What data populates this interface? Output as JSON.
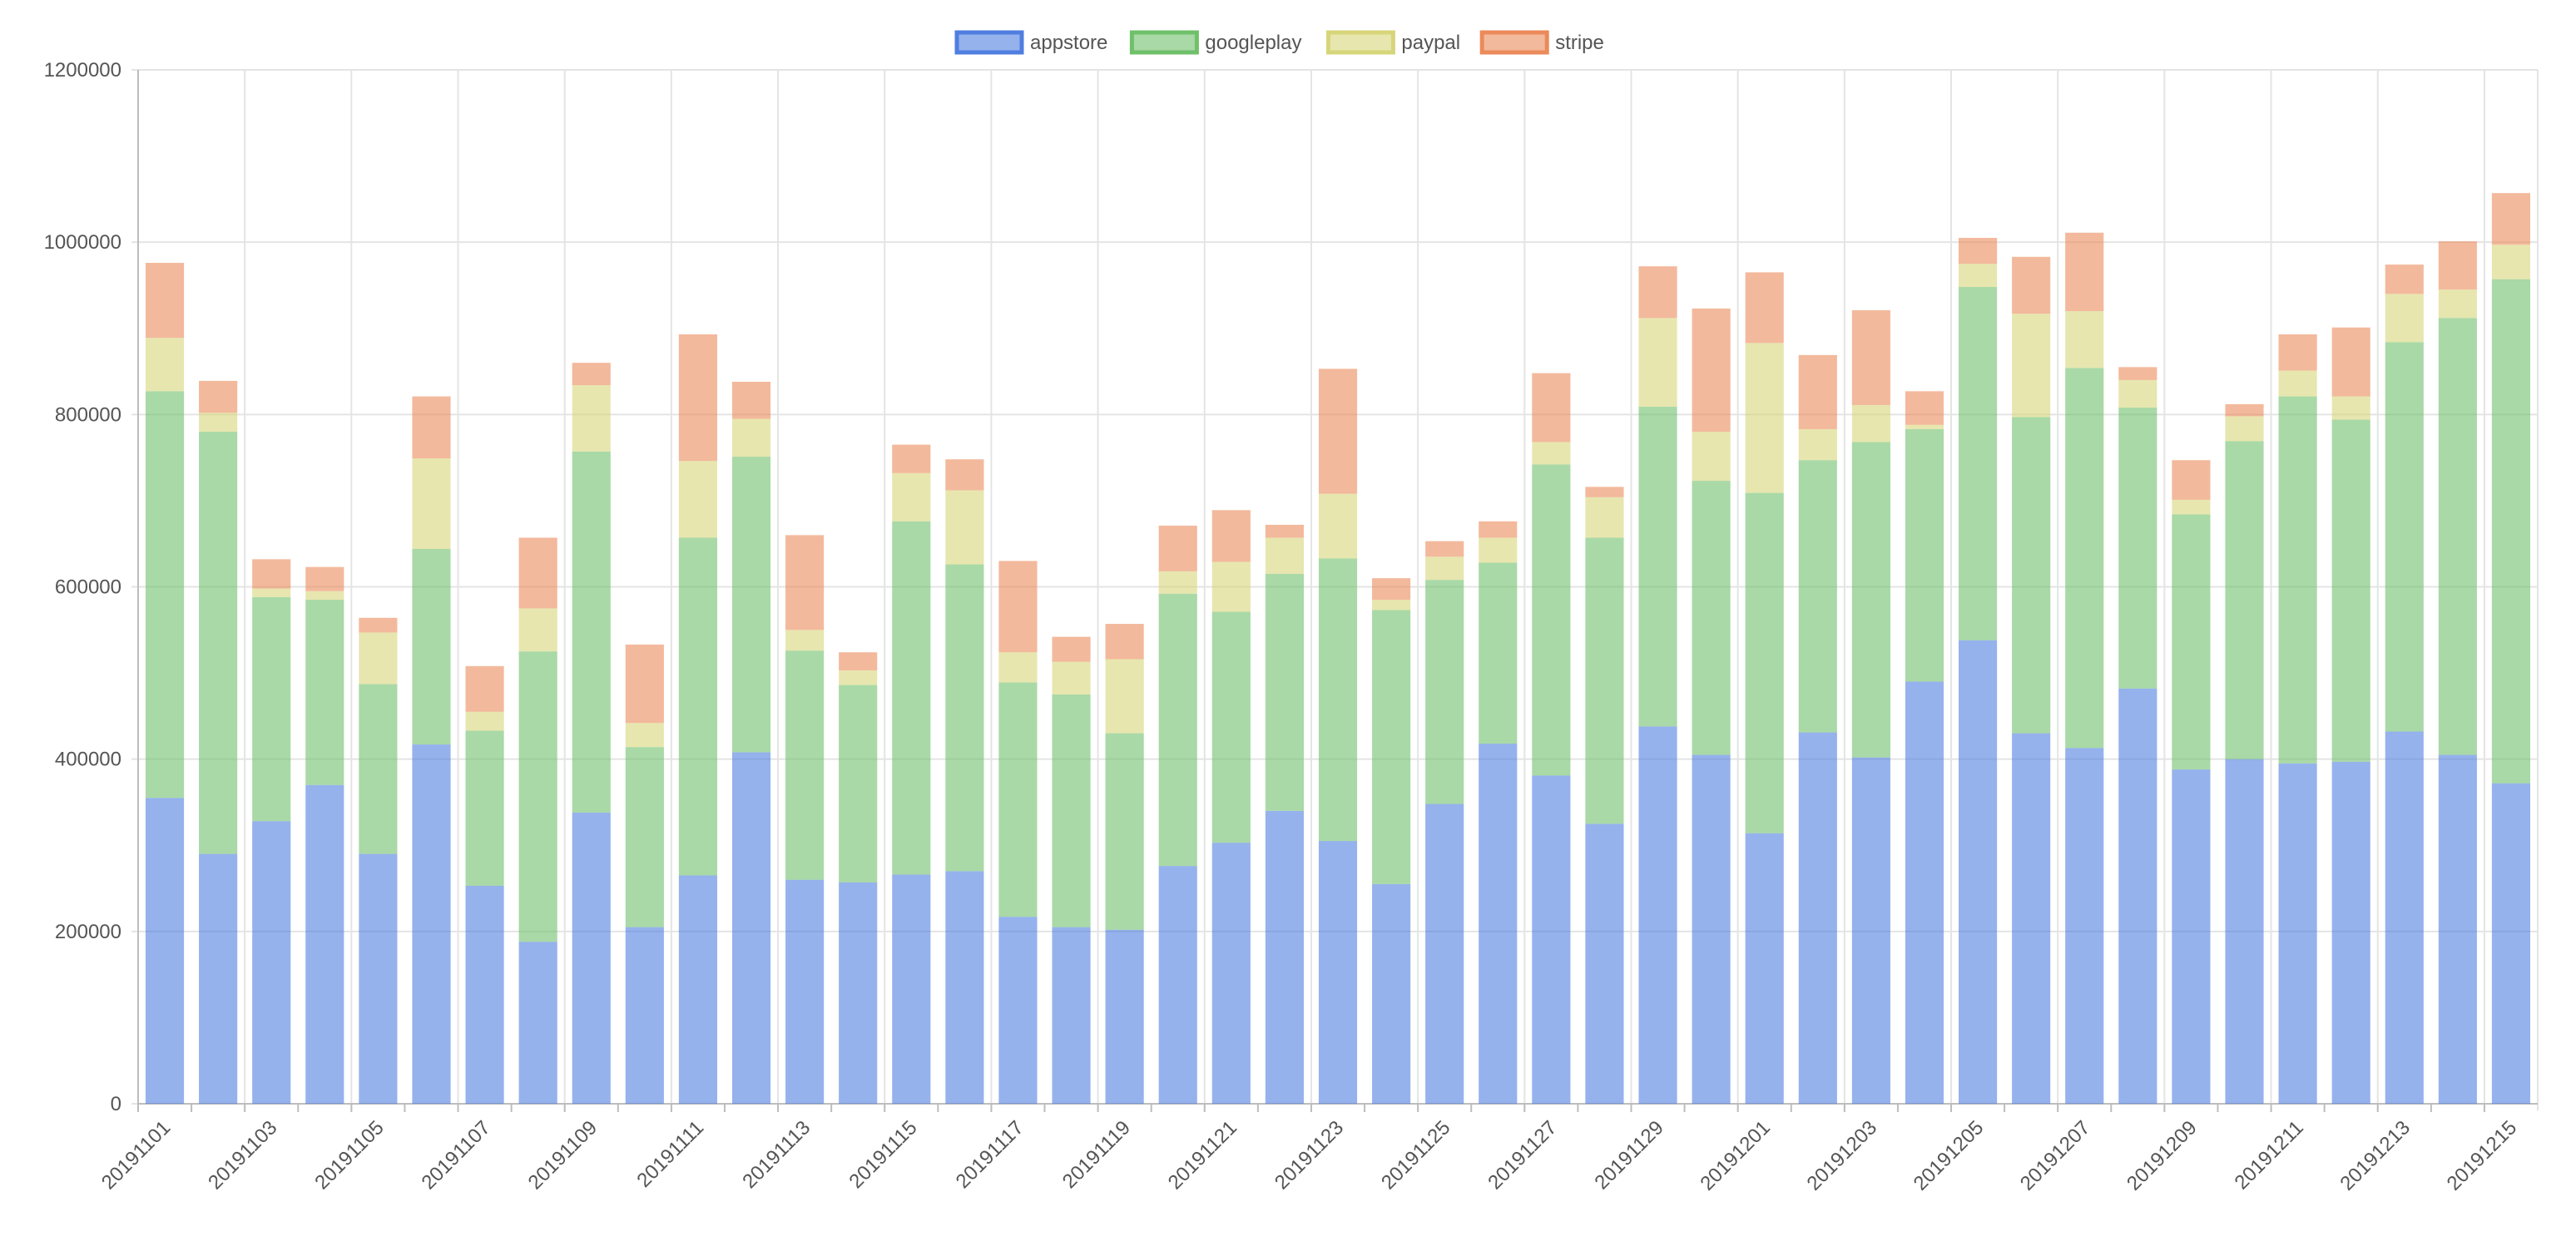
{
  "chart_data": {
    "type": "bar",
    "stacked": true,
    "title": "",
    "xlabel": "",
    "ylabel": "",
    "ylim": [
      0,
      1200000
    ],
    "y_ticks": [
      "0",
      "200000",
      "400000",
      "600000",
      "800000",
      "1000000",
      "1200000"
    ],
    "grid": true,
    "legend_position": "top",
    "categories": [
      "20191101",
      "20191102",
      "20191103",
      "20191104",
      "20191105",
      "20191106",
      "20191107",
      "20191108",
      "20191109",
      "20191110",
      "20191111",
      "20191112",
      "20191113",
      "20191114",
      "20191115",
      "20191116",
      "20191117",
      "20191118",
      "20191119",
      "20191120",
      "20191121",
      "20191122",
      "20191123",
      "20191124",
      "20191125",
      "20191126",
      "20191127",
      "20191128",
      "20191129",
      "20191130",
      "20191201",
      "20191202",
      "20191203",
      "20191204",
      "20191205",
      "20191206",
      "20191207",
      "20191208",
      "20191209",
      "20191210",
      "20191211",
      "20191212",
      "20191213",
      "20191214",
      "20191215"
    ],
    "x_tick_labels": [
      "20191101",
      "",
      "20191103",
      "",
      "20191105",
      "",
      "20191107",
      "",
      "20191109",
      "",
      "20191111",
      "",
      "20191113",
      "",
      "20191115",
      "",
      "20191117",
      "",
      "20191119",
      "",
      "20191121",
      "",
      "20191123",
      "",
      "20191125",
      "",
      "20191127",
      "",
      "20191129",
      "",
      "20191201",
      "",
      "20191203",
      "",
      "20191205",
      "",
      "20191207",
      "",
      "20191209",
      "",
      "20191211",
      "",
      "20191213",
      "",
      "20191215"
    ],
    "series": [
      {
        "name": "appstore",
        "color": "#4f7ee0",
        "values": [
          355000,
          290000,
          328000,
          370000,
          290000,
          417000,
          253000,
          188000,
          338000,
          205000,
          265000,
          408000,
          260000,
          257000,
          266000,
          270000,
          217000,
          205000,
          202000,
          276000,
          303000,
          340000,
          305000,
          255000,
          348000,
          418000,
          381000,
          325000,
          438000,
          405000,
          314000,
          431000,
          402000,
          490000,
          538000,
          430000,
          413000,
          482000,
          388000,
          400000,
          395000,
          397000,
          432000,
          405000,
          372000
        ]
      },
      {
        "name": "googleplay",
        "color": "#6fc06a",
        "values": [
          472000,
          490000,
          260000,
          215000,
          197000,
          227000,
          180000,
          337000,
          419000,
          209000,
          392000,
          343000,
          266000,
          229000,
          410000,
          356000,
          272000,
          270000,
          228000,
          316000,
          268000,
          275000,
          328000,
          318000,
          260000,
          210000,
          361000,
          332000,
          371000,
          318000,
          395000,
          316000,
          366000,
          293000,
          410000,
          367000,
          441000,
          326000,
          296000,
          369000,
          426000,
          397000,
          452000,
          507000,
          585000
        ]
      },
      {
        "name": "paypal",
        "color": "#d7d57a",
        "values": [
          62000,
          22000,
          10000,
          10000,
          60000,
          105000,
          22000,
          50000,
          77000,
          28000,
          89000,
          44000,
          24000,
          17000,
          56000,
          86000,
          35000,
          38000,
          86000,
          26000,
          58000,
          42000,
          75000,
          12000,
          27000,
          29000,
          26000,
          47000,
          103000,
          57000,
          174000,
          36000,
          43000,
          5000,
          27000,
          120000,
          66000,
          32000,
          17000,
          29000,
          30000,
          27000,
          56000,
          33000,
          40000
        ]
      },
      {
        "name": "stripe",
        "color": "#eb8a5a",
        "values": [
          87000,
          37000,
          34000,
          28000,
          17000,
          72000,
          53000,
          82000,
          26000,
          91000,
          147000,
          43000,
          110000,
          21000,
          33000,
          36000,
          106000,
          29000,
          41000,
          53000,
          60000,
          15000,
          145000,
          25000,
          18000,
          19000,
          80000,
          12000,
          60000,
          143000,
          82000,
          86000,
          110000,
          39000,
          30000,
          66000,
          91000,
          15000,
          46000,
          14000,
          42000,
          80000,
          34000,
          56000,
          60000
        ]
      }
    ]
  }
}
